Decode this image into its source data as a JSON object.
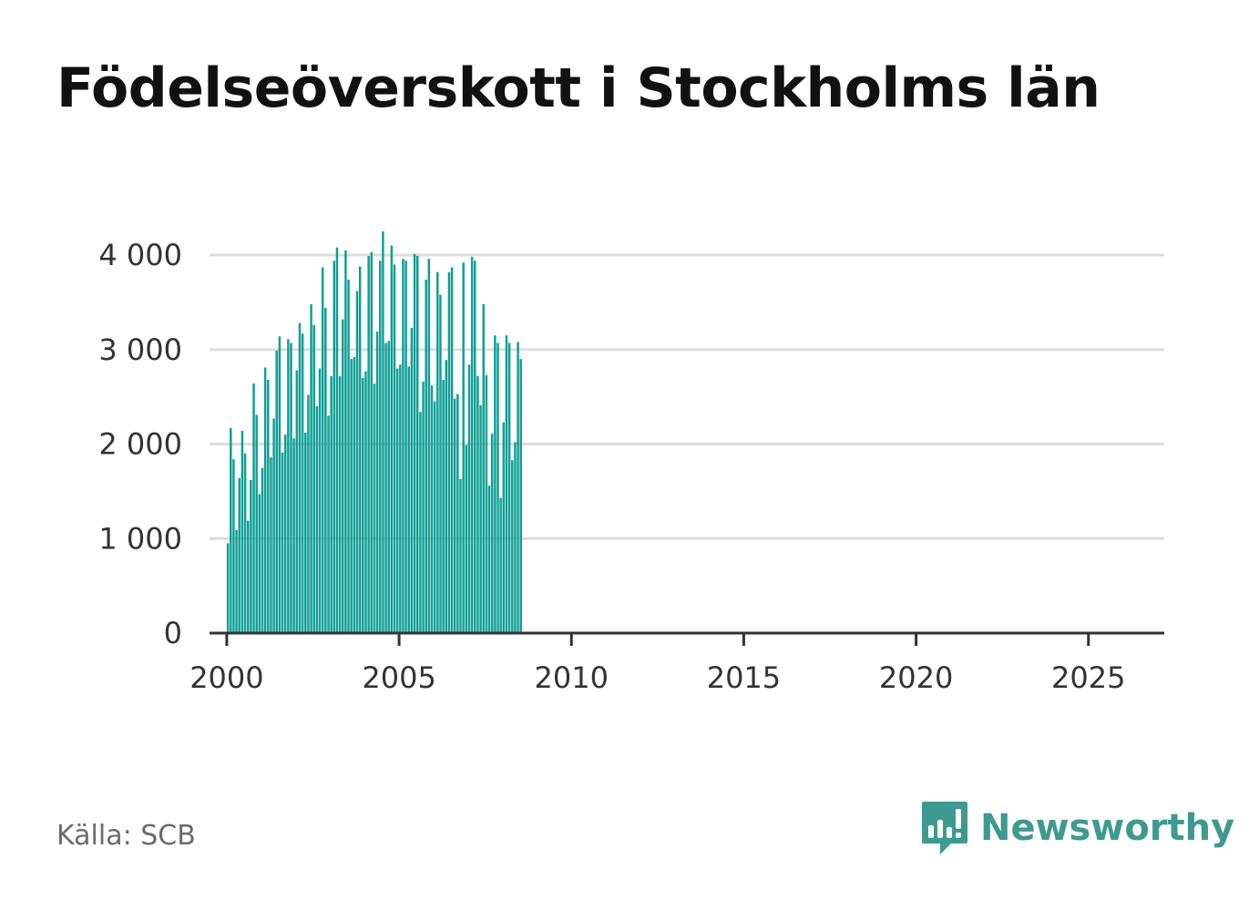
{
  "chart_data": {
    "type": "bar",
    "title": "Födelseöverskott i Stockholms län",
    "xlabel": "",
    "ylabel": "",
    "ylim": [
      0,
      4400
    ],
    "yticks": [
      0,
      1000,
      2000,
      3000,
      4000
    ],
    "ytick_labels": [
      "0",
      "1 000",
      "2 000",
      "3 000",
      "4 000"
    ],
    "xticks": [
      2000,
      2005,
      2010,
      2015,
      2020,
      2025
    ],
    "xtick_labels": [
      "2000",
      "2005",
      "2010",
      "2015",
      "2020",
      "2025"
    ],
    "xlim": [
      1999.5,
      2027.2
    ],
    "start_year": 2000,
    "bars_per_year": 12,
    "bar_color": "#0e9e94",
    "grid": true,
    "values": [
      950,
      2170,
      1840,
      1090,
      1640,
      2140,
      1900,
      1190,
      1620,
      2640,
      2310,
      1470,
      1750,
      2810,
      2680,
      1860,
      2270,
      2990,
      3140,
      1910,
      2100,
      3110,
      3070,
      2060,
      2780,
      3280,
      3170,
      2120,
      2520,
      3480,
      3260,
      2400,
      2800,
      3870,
      3440,
      2300,
      2720,
      3940,
      4080,
      2720,
      3320,
      4050,
      3740,
      2900,
      2920,
      3620,
      3880,
      2700,
      2770,
      3990,
      4030,
      2640,
      3190,
      3940,
      4250,
      3070,
      3090,
      4100,
      3900,
      2800,
      2840,
      3960,
      3940,
      2820,
      3230,
      4010,
      3990,
      2340,
      2660,
      3740,
      3960,
      2620,
      2450,
      3820,
      3580,
      2680,
      2890,
      3820,
      3870,
      2480,
      2530,
      1630,
      3920,
      1990,
      2840,
      3980,
      3940,
      2720,
      2410,
      3480,
      2730,
      1560,
      2110,
      3150,
      3070,
      1430,
      2230,
      3150,
      3070,
      1830,
      2020,
      3080,
      2900
    ]
  },
  "footer": {
    "source": "Källa: SCB",
    "brand": "Newsworthy"
  },
  "colors": {
    "accent": "#0e9e94",
    "brand": "#3d9a90",
    "gridline": "#dddddd",
    "axis": "#333333"
  }
}
